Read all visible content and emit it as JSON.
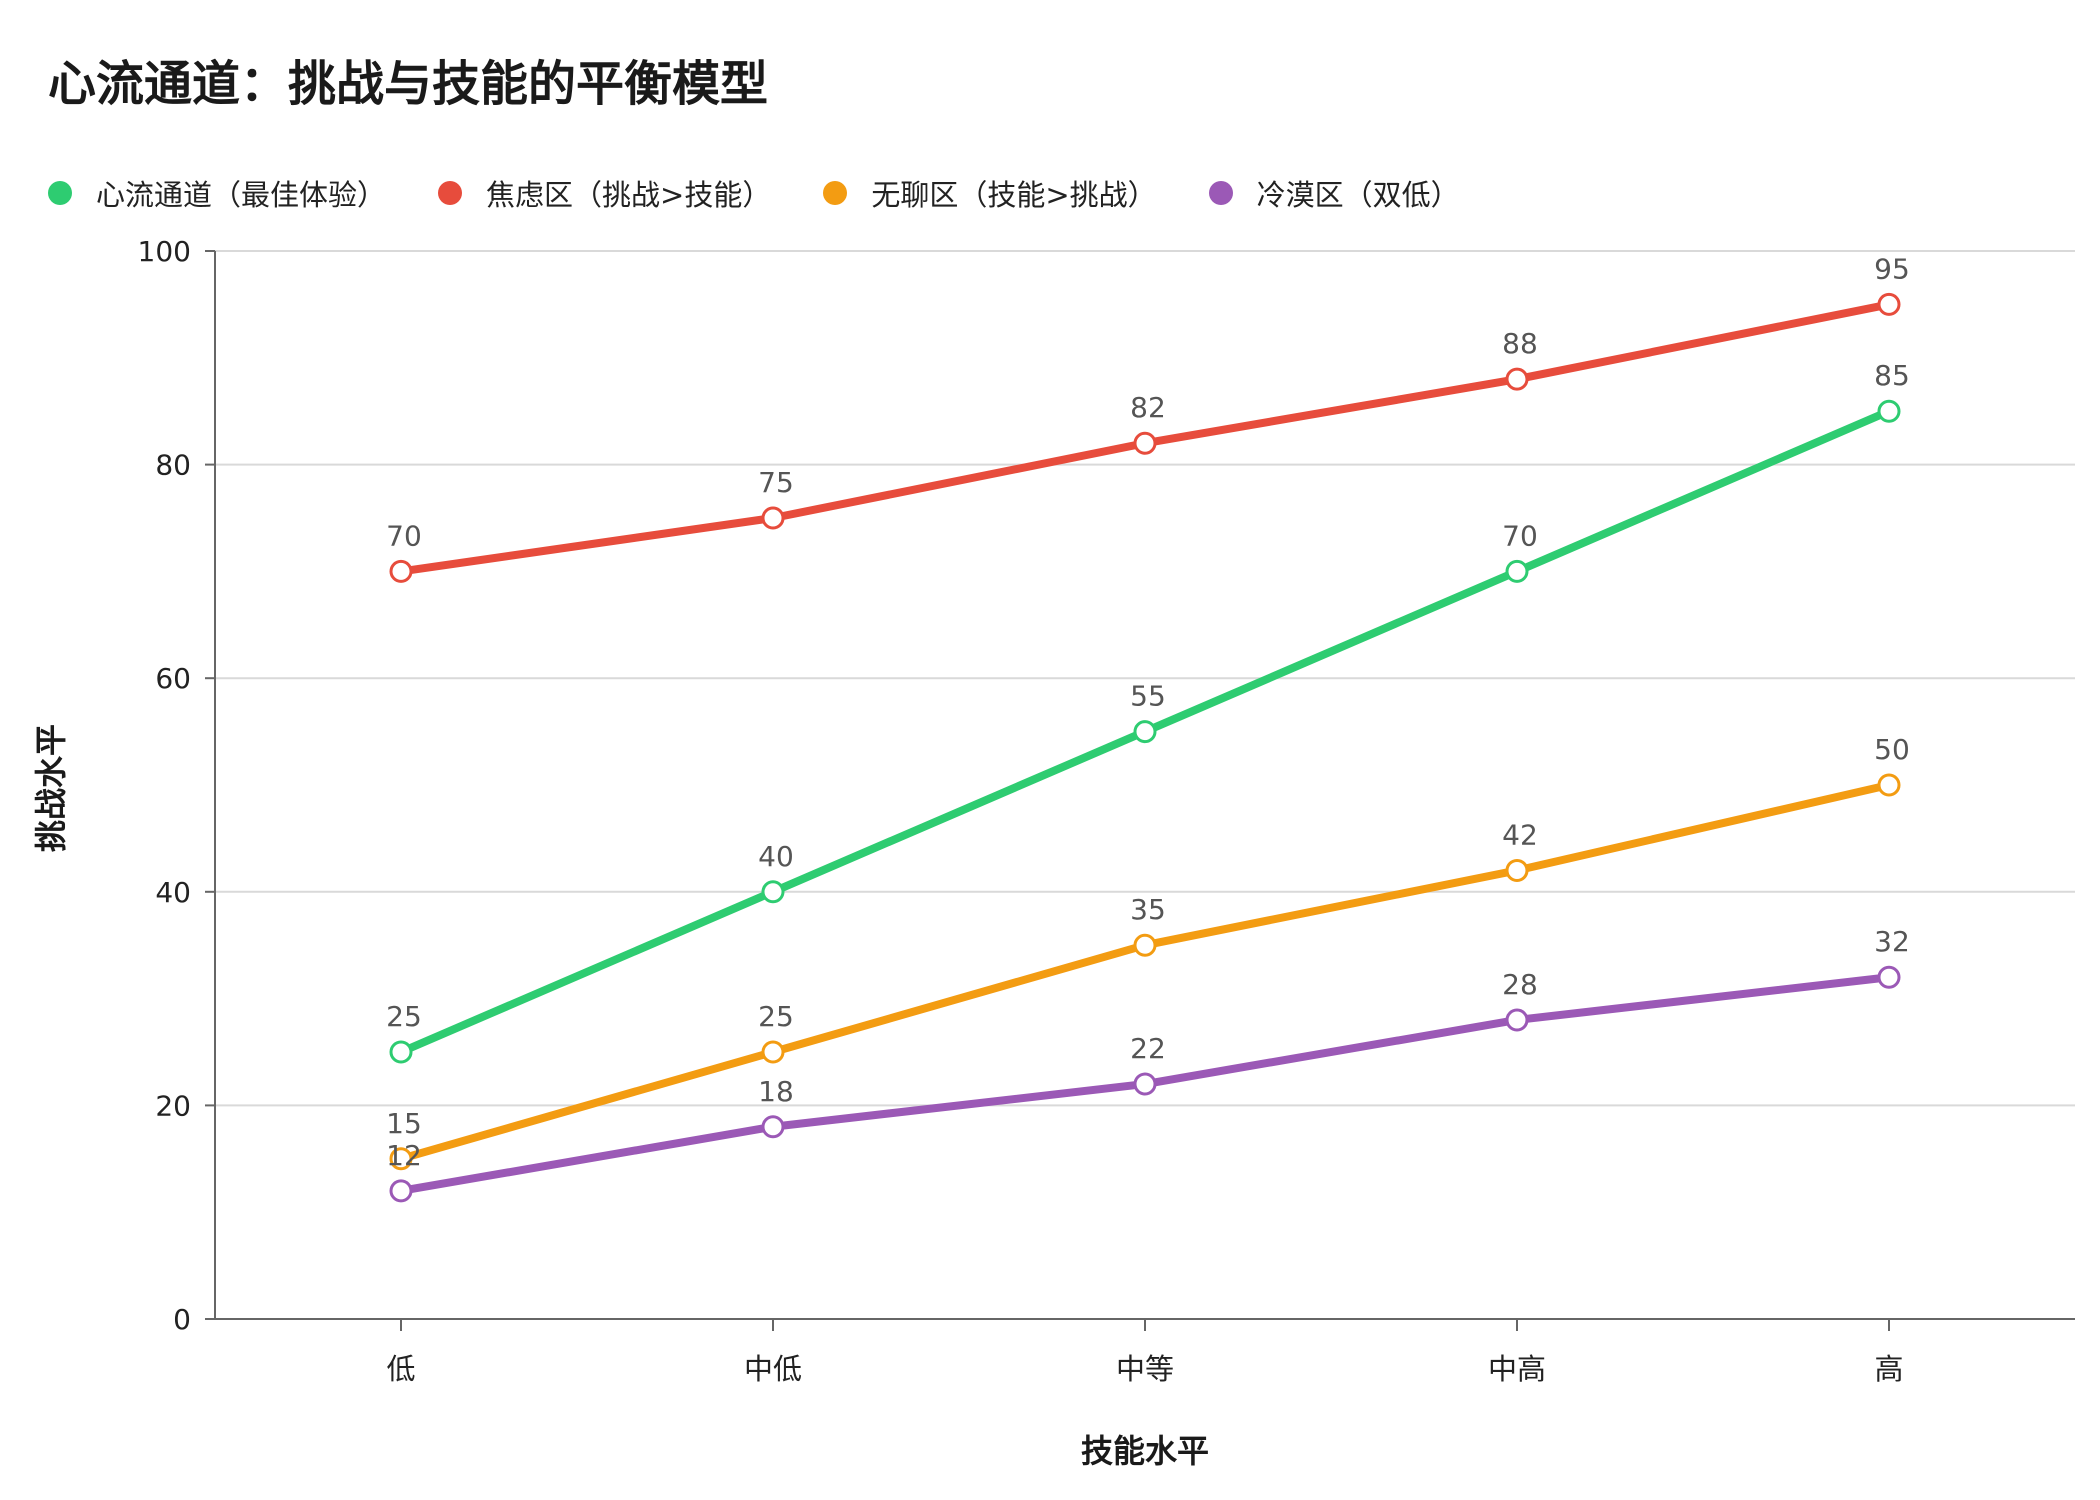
{
  "chart_data": {
    "type": "line",
    "title": "心流通道：挑战与技能的平衡模型",
    "xlabel": "技能水平",
    "ylabel": "挑战水平",
    "categories": [
      "低",
      "中低",
      "中等",
      "中高",
      "高"
    ],
    "ylim": [
      0,
      100
    ],
    "yticks": [
      0,
      20,
      40,
      60,
      80,
      100
    ],
    "grid": true,
    "legend_position": "top-left",
    "series": [
      {
        "name": "心流通道（最佳体验）",
        "color": "#2ecc71",
        "values": [
          25,
          40,
          55,
          70,
          85
        ]
      },
      {
        "name": "焦虑区（挑战>技能）",
        "color": "#e74c3c",
        "values": [
          70,
          75,
          82,
          88,
          95
        ]
      },
      {
        "name": "无聊区（技能>挑战）",
        "color": "#f39c12",
        "values": [
          15,
          25,
          35,
          42,
          50
        ]
      },
      {
        "name": "冷漠区（双低）",
        "color": "#9b59b6",
        "values": [
          12,
          18,
          22,
          28,
          32
        ]
      }
    ]
  }
}
